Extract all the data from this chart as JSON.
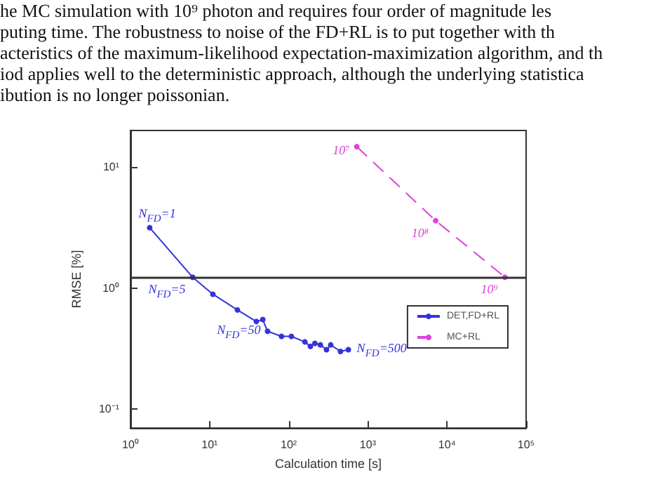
{
  "chart_data": {
    "type": "line",
    "xlabel": "Calculation time [s]",
    "ylabel": "RMSE [%]",
    "log": "xy",
    "xlim": [
      1,
      100000
    ],
    "ylim": [
      0.07,
      20
    ],
    "xticks": [
      {
        "value": 1,
        "label": "10⁰"
      },
      {
        "value": 10,
        "label": "10¹"
      },
      {
        "value": 100,
        "label": "10²"
      },
      {
        "value": 1000,
        "label": "10³"
      },
      {
        "value": 10000,
        "label": "10⁴"
      },
      {
        "value": 100000,
        "label": "10⁵"
      }
    ],
    "yticks": [
      {
        "value": 0.1,
        "label": "10⁻¹"
      },
      {
        "value": 1,
        "label": "10⁰"
      },
      {
        "value": 10,
        "label": "10¹"
      }
    ],
    "grid": false,
    "legend": "right",
    "marker": "circle",
    "series": [
      {
        "name": "DET,FD+RL",
        "color": "#3333dd",
        "x": [
          1.75,
          6.1,
          11,
          22.5,
          39,
          47,
          54,
          81,
          108,
          160,
          188,
          214,
          251,
          300,
          339,
          451,
          567
        ],
        "values": [
          3.15,
          1.23,
          0.89,
          0.66,
          0.53,
          0.55,
          0.44,
          0.4,
          0.4,
          0.36,
          0.33,
          0.35,
          0.34,
          0.31,
          0.34,
          0.3,
          0.31
        ]
      },
      {
        "name": "MC+RL",
        "color": "#dd44dd",
        "line_style": "dashed",
        "x": [
          724,
          7200,
          54000
        ],
        "values": [
          14.7,
          3.6,
          1.23
        ]
      }
    ],
    "ref_lines": [
      {
        "axis": "y",
        "value": 1.23,
        "color": "#333333"
      }
    ],
    "annotations": [
      "he MC simulation with 10⁹ photon and requires four order of magnitude les",
      "puting time. The robustness to noise of the FD+RL is to put together with th",
      "acteristics of the maximum-likelihood expectation-maximization algorithm, and th",
      "iod applies well to the deterministic approach, although the underlying statistica",
      "ibution is no longer poissonian.",
      {
        "text": "N$_{FD}$=1",
        "x": 1.75,
        "y": 3.15
      },
      {
        "text": "N$_{FD}$=5",
        "x": 6.1,
        "y": 1.23
      },
      {
        "text": "N$_{FD}$=50",
        "x": 54,
        "y": 0.44
      },
      {
        "text": "N$_{FD}$=500",
        "x": 567,
        "y": 0.31
      },
      {
        "text": "10⁷",
        "x": 724,
        "y": 14.7
      },
      {
        "text": "10⁸",
        "x": 7200,
        "y": 3.6
      },
      {
        "text": "10⁹",
        "x": 54000,
        "y": 1.23
      }
    ]
  }
}
